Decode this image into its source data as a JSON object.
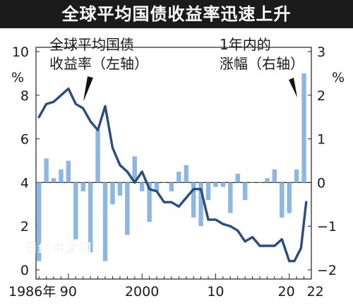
{
  "title": "全球平均国债收益率迅速上升",
  "watermark": "日经中文网",
  "chart_data": {
    "type": "bar+line",
    "left_axis": {
      "unit": "%",
      "ticks": [
        0,
        2,
        4,
        6,
        8,
        10
      ],
      "range": [
        0,
        10
      ]
    },
    "right_axis": {
      "unit": "%",
      "ticks": [
        -2,
        -1,
        0,
        1,
        2,
        3
      ],
      "range": [
        -2,
        3
      ]
    },
    "x_ticks": [
      {
        "year": 1986,
        "label": "1986年"
      },
      {
        "year": 1990,
        "label": "90"
      },
      {
        "year": 2000,
        "label": "2000"
      },
      {
        "year": 2010,
        "label": "10"
      },
      {
        "year": 2020,
        "label": "20"
      },
      {
        "year": 2022,
        "label": "22"
      }
    ],
    "annotations": {
      "line_label_1": "全球平均国债",
      "line_label_2": "收益率（左轴）",
      "bar_label_1": "1年内的",
      "bar_label_2": "涨幅（右轴）"
    },
    "series": [
      {
        "name": "全球平均国债收益率（左轴）",
        "axis": "left",
        "type": "line",
        "color": "#2b4d7e",
        "points": [
          [
            1986.0,
            7.0
          ],
          [
            1987.0,
            7.6
          ],
          [
            1988.0,
            7.7
          ],
          [
            1989.0,
            8.0
          ],
          [
            1990.0,
            8.3
          ],
          [
            1991.0,
            7.6
          ],
          [
            1992.0,
            7.4
          ],
          [
            1993.0,
            6.8
          ],
          [
            1994.0,
            6.4
          ],
          [
            1995.0,
            7.5
          ],
          [
            1996.0,
            5.6
          ],
          [
            1997.0,
            4.8
          ],
          [
            1998.0,
            4.5
          ],
          [
            1999.0,
            4.0
          ],
          [
            2000.0,
            4.5
          ],
          [
            2001.0,
            3.7
          ],
          [
            2002.0,
            3.6
          ],
          [
            2003.0,
            3.1
          ],
          [
            2004.0,
            3.1
          ],
          [
            2005.0,
            2.9
          ],
          [
            2006.0,
            3.3
          ],
          [
            2007.0,
            3.7
          ],
          [
            2008.0,
            3.7
          ],
          [
            2009.0,
            2.3
          ],
          [
            2010.0,
            2.3
          ],
          [
            2011.0,
            2.1
          ],
          [
            2012.0,
            2.0
          ],
          [
            2013.0,
            1.8
          ],
          [
            2014.0,
            1.3
          ],
          [
            2015.0,
            1.5
          ],
          [
            2016.0,
            1.1
          ],
          [
            2017.0,
            1.1
          ],
          [
            2018.0,
            1.1
          ],
          [
            2019.0,
            1.4
          ],
          [
            2020.0,
            0.4
          ],
          [
            2020.7,
            0.4
          ],
          [
            2021.6,
            1.0
          ],
          [
            2022.3,
            3.1
          ]
        ]
      },
      {
        "name": "1年内的涨幅（右轴）",
        "axis": "right",
        "type": "bar",
        "color": "#8db7e0",
        "points": [
          [
            1986.0,
            -1.8
          ],
          [
            1987.0,
            0.55
          ],
          [
            1988.0,
            0.1
          ],
          [
            1989.0,
            0.3
          ],
          [
            1990.0,
            0.5
          ],
          [
            1991.0,
            -1.3
          ],
          [
            1992.0,
            -0.2
          ],
          [
            1993.0,
            -1.6
          ],
          [
            1994.0,
            1.2
          ],
          [
            1995.0,
            -1.8
          ],
          [
            1996.0,
            -0.5
          ],
          [
            1997.0,
            -0.3
          ],
          [
            1998.0,
            -1.2
          ],
          [
            1999.0,
            0.6
          ],
          [
            2000.0,
            -0.2
          ],
          [
            2001.0,
            -0.9
          ],
          [
            2002.0,
            -0.2
          ],
          [
            2003.0,
            0.0
          ],
          [
            2004.0,
            -0.2
          ],
          [
            2005.0,
            0.25
          ],
          [
            2006.0,
            0.4
          ],
          [
            2007.0,
            -0.8
          ],
          [
            2008.0,
            -1.0
          ],
          [
            2009.0,
            -0.4
          ],
          [
            2010.0,
            -0.1
          ],
          [
            2011.0,
            -0.1
          ],
          [
            2012.0,
            -0.7
          ],
          [
            2013.0,
            0.2
          ],
          [
            2014.0,
            -0.4
          ],
          [
            2015.0,
            0.0
          ],
          [
            2016.0,
            0.0
          ],
          [
            2017.0,
            0.1
          ],
          [
            2018.0,
            0.3
          ],
          [
            2019.0,
            -0.8
          ],
          [
            2020.0,
            -0.7
          ],
          [
            2021.0,
            0.3
          ],
          [
            2022.0,
            2.5
          ]
        ]
      }
    ]
  }
}
